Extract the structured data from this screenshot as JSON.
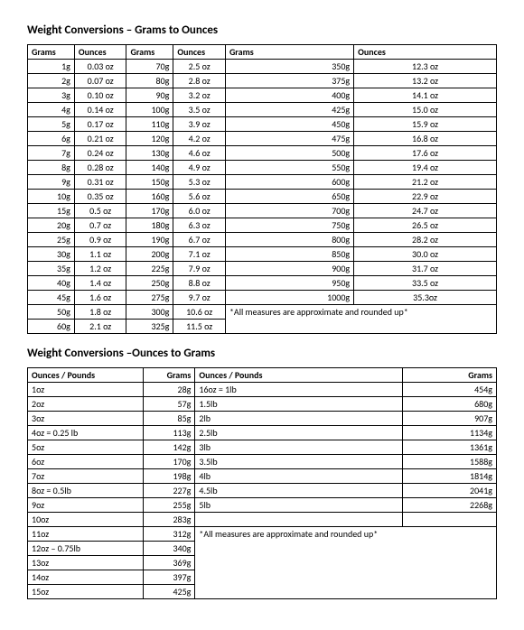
{
  "title1": "Weight Conversions – Grams to Ounces",
  "title2": "Weight Conversions –Ounces to Grams",
  "headers1": [
    "Grams",
    "Ounces",
    "Grams",
    "Ounces",
    "Grams",
    "Ounces"
  ],
  "headers2": [
    "Ounces / Pounds",
    "Grams",
    "Ounces / Pounds",
    "Grams"
  ],
  "table1": [
    [
      "1g",
      "0.03 oz",
      "70g",
      "2.5 oz",
      "350g",
      "12.3 oz"
    ],
    [
      "2g",
      "0.07 oz",
      "80g",
      "2.8 oz",
      "375g",
      "13.2 oz"
    ],
    [
      "3g",
      "0.10 oz",
      "90g",
      "3.2 oz",
      "400g",
      "14.1 oz"
    ],
    [
      "4g",
      "0.14 oz",
      "100g",
      "3.5 oz",
      "425g",
      "15.0 oz"
    ],
    [
      "5g",
      "0.17 oz",
      "110g",
      "3.9 oz",
      "450g",
      "15.9 oz"
    ],
    [
      "6g",
      "0.21 oz",
      "120g",
      "4.2 oz",
      "475g",
      "16.8 oz"
    ],
    [
      "7g",
      "0.24 oz",
      "130g",
      "4.6 oz",
      "500g",
      "17.6 oz"
    ],
    [
      "8g",
      "0.28 oz",
      "140g",
      "4.9 oz",
      "550g",
      "19.4 oz"
    ],
    [
      "9g",
      "0.31 oz",
      "150g",
      "5.3 oz",
      "600g",
      "21.2 oz"
    ],
    [
      "10g",
      "0.35 oz",
      "160g",
      "5.6 oz",
      "650g",
      "22.9 oz"
    ],
    [
      "15g",
      "0.5 oz",
      "170g",
      "6.0 oz",
      "700g",
      "24.7 oz"
    ],
    [
      "20g",
      "0.7 oz",
      "180g",
      "6.3 oz",
      "750g",
      "26.5 oz"
    ],
    [
      "25g",
      "0.9 oz",
      "190g",
      "6.7 oz",
      "800g",
      "28.2 oz"
    ],
    [
      "30g",
      "1.1 oz",
      "200g",
      "7.1 oz",
      "850g",
      "30.0 oz"
    ],
    [
      "35g",
      "1.2 oz",
      "225g",
      "7.9 oz",
      "900g",
      "31.7 oz"
    ],
    [
      "40g",
      "1.4 oz",
      "250g",
      "8.8 oz",
      "950g",
      "33.5 oz"
    ],
    [
      "45g",
      "1.6 oz",
      "275g",
      "9.7 oz",
      "1000g",
      "35.3oz"
    ]
  ],
  "table1_tail": {
    "row1": [
      "50g",
      "1.8 oz",
      "300g",
      "10.6 oz"
    ],
    "row2": [
      "60g",
      "2.1 oz",
      "325g",
      "11.5 oz"
    ],
    "note": "*All measures are approximate and rounded up*"
  },
  "table2_left": [
    [
      "1oz",
      "28g"
    ],
    [
      "2oz",
      "57g"
    ],
    [
      "3oz",
      "85g"
    ],
    [
      "4oz  = 0.25 lb",
      "113g"
    ],
    [
      "5oz",
      "142g"
    ],
    [
      "6oz",
      "170g"
    ],
    [
      "7oz",
      "198g"
    ],
    [
      "8oz = 0.5lb",
      "227g"
    ],
    [
      "9oz",
      "255g"
    ],
    [
      "10oz",
      "283g"
    ],
    [
      "11oz",
      "312g"
    ],
    [
      "12oz – 0.75lb",
      "340g"
    ],
    [
      "13oz",
      "369g"
    ],
    [
      "14oz",
      "397g"
    ],
    [
      "15oz",
      "425g"
    ]
  ],
  "table2_right": [
    [
      "16oz = 1lb",
      "454g"
    ],
    [
      "1.5lb",
      "680g"
    ],
    [
      "2lb",
      "907g"
    ],
    [
      "2.5lb",
      "1134g"
    ],
    [
      "3lb",
      "1361g"
    ],
    [
      "3.5lb",
      "1588g"
    ],
    [
      "4lb",
      "1814g"
    ],
    [
      "4.5lb",
      "2041g"
    ],
    [
      "5lb",
      "2268g"
    ]
  ],
  "note2": "*All measures are approximate and rounded up*"
}
